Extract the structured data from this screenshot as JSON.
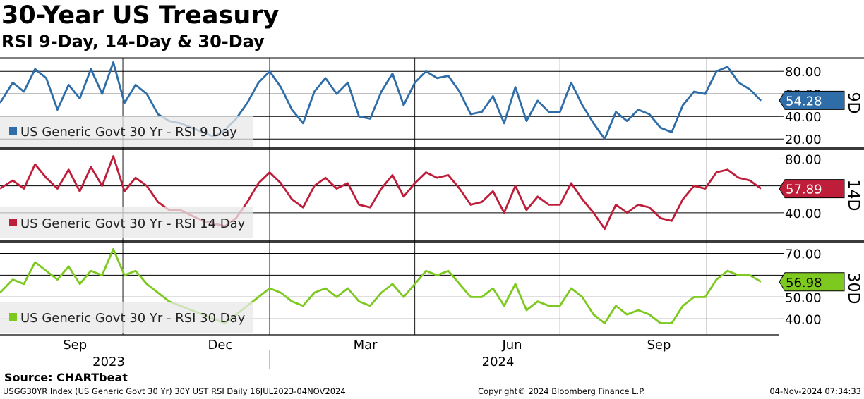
{
  "header": {
    "title": "30-Year US Treasury",
    "subtitle": "RSI 9-Day, 14-Day & 30-Day"
  },
  "footer": {
    "source": "Source: CHARTbeat",
    "left": "USGG30YR Index (US Generic Govt 30 Yr) 30Y UST RSI  Daily 16JUL2023-04NOV2024",
    "middle": "Copyright© 2024 Bloomberg Finance L.P.",
    "right": "04-Nov-2024 07:34:33"
  },
  "chart_data": [
    {
      "type": "line",
      "panel_label": "9D",
      "legend": "US Generic Govt 30 Yr - RSI 9 Day",
      "color": "#2e6da8",
      "last_value": "54.28",
      "last_value_num": 54.28,
      "ylim": [
        12,
        92
      ],
      "yticks": [
        "80.00",
        "60.00",
        "40.00",
        "20.00"
      ],
      "ytick_values": [
        80,
        60,
        40,
        20
      ],
      "grid_values": [
        80,
        60,
        40,
        20
      ],
      "series": [
        {
          "x": [
            "2023-07-16",
            "2023-07-24",
            "2023-07-31",
            "2023-08-07",
            "2023-08-14",
            "2023-08-21",
            "2023-08-28",
            "2023-09-04",
            "2023-09-11",
            "2023-09-18",
            "2023-09-25",
            "2023-10-02",
            "2023-10-09",
            "2023-10-16",
            "2023-10-23",
            "2023-10-30",
            "2023-11-06",
            "2023-11-13",
            "2023-11-20",
            "2023-11-27",
            "2023-12-04",
            "2023-12-11",
            "2023-12-18",
            "2023-12-25",
            "2024-01-01",
            "2024-01-08",
            "2024-01-15",
            "2024-01-22",
            "2024-01-29",
            "2024-02-05",
            "2024-02-12",
            "2024-02-19",
            "2024-02-26",
            "2024-03-04",
            "2024-03-11",
            "2024-03-18",
            "2024-03-25",
            "2024-04-01",
            "2024-04-08",
            "2024-04-15",
            "2024-04-22",
            "2024-04-29",
            "2024-05-06",
            "2024-05-13",
            "2024-05-20",
            "2024-05-27",
            "2024-06-03",
            "2024-06-10",
            "2024-06-17",
            "2024-06-24",
            "2024-07-01",
            "2024-07-08",
            "2024-07-15",
            "2024-07-22",
            "2024-07-29",
            "2024-08-05",
            "2024-08-12",
            "2024-08-19",
            "2024-08-26",
            "2024-09-02",
            "2024-09-09",
            "2024-09-16",
            "2024-09-23",
            "2024-09-30",
            "2024-10-07",
            "2024-10-14",
            "2024-10-21",
            "2024-10-28",
            "2024-11-04"
          ],
          "values": [
            52,
            70,
            62,
            82,
            74,
            46,
            68,
            56,
            82,
            60,
            88,
            52,
            68,
            60,
            42,
            36,
            34,
            30,
            26,
            22,
            28,
            38,
            52,
            70,
            80,
            66,
            46,
            34,
            62,
            74,
            60,
            70,
            40,
            38,
            62,
            78,
            50,
            70,
            80,
            74,
            76,
            62,
            42,
            44,
            58,
            34,
            66,
            36,
            54,
            44,
            44,
            70,
            50,
            34,
            20,
            44,
            36,
            46,
            42,
            30,
            26,
            50,
            62,
            60,
            80,
            84,
            70,
            64,
            54
          ]
        }
      ]
    },
    {
      "type": "line",
      "panel_label": "14D",
      "legend": "US Generic Govt 30 Yr - RSI 14 Day",
      "color": "#be1e3a",
      "last_value": "57.89",
      "last_value_num": 57.89,
      "ylim": [
        20,
        86
      ],
      "yticks": [
        "80.00",
        "40.00"
      ],
      "ytick_values": [
        80,
        40
      ],
      "grid_values": [
        80,
        60,
        40
      ],
      "series": [
        {
          "x": [
            "2023-07-16",
            "2023-07-24",
            "2023-07-31",
            "2023-08-07",
            "2023-08-14",
            "2023-08-21",
            "2023-08-28",
            "2023-09-04",
            "2023-09-11",
            "2023-09-18",
            "2023-09-25",
            "2023-10-02",
            "2023-10-09",
            "2023-10-16",
            "2023-10-23",
            "2023-10-30",
            "2023-11-06",
            "2023-11-13",
            "2023-11-20",
            "2023-11-27",
            "2023-12-04",
            "2023-12-11",
            "2023-12-18",
            "2023-12-25",
            "2024-01-01",
            "2024-01-08",
            "2024-01-15",
            "2024-01-22",
            "2024-01-29",
            "2024-02-05",
            "2024-02-12",
            "2024-02-19",
            "2024-02-26",
            "2024-03-04",
            "2024-03-11",
            "2024-03-18",
            "2024-03-25",
            "2024-04-01",
            "2024-04-08",
            "2024-04-15",
            "2024-04-22",
            "2024-04-29",
            "2024-05-06",
            "2024-05-13",
            "2024-05-20",
            "2024-05-27",
            "2024-06-03",
            "2024-06-10",
            "2024-06-17",
            "2024-06-24",
            "2024-07-01",
            "2024-07-08",
            "2024-07-15",
            "2024-07-22",
            "2024-07-29",
            "2024-08-05",
            "2024-08-12",
            "2024-08-19",
            "2024-08-26",
            "2024-09-02",
            "2024-09-09",
            "2024-09-16",
            "2024-09-23",
            "2024-09-30",
            "2024-10-07",
            "2024-10-14",
            "2024-10-21",
            "2024-10-28",
            "2024-11-04"
          ],
          "values": [
            58,
            64,
            58,
            76,
            66,
            58,
            72,
            56,
            74,
            60,
            82,
            56,
            66,
            60,
            48,
            42,
            42,
            38,
            34,
            32,
            30,
            36,
            48,
            62,
            70,
            62,
            50,
            44,
            60,
            66,
            58,
            62,
            46,
            44,
            58,
            68,
            52,
            62,
            70,
            66,
            68,
            58,
            46,
            48,
            56,
            40,
            60,
            42,
            52,
            46,
            46,
            62,
            50,
            40,
            28,
            46,
            40,
            46,
            44,
            36,
            34,
            50,
            60,
            58,
            70,
            72,
            66,
            64,
            58
          ]
        }
      ]
    },
    {
      "type": "line",
      "panel_label": "30D",
      "legend": "US Generic Govt 30 Yr - RSI 30 Day",
      "color": "#7dc91f",
      "last_value": "56.98",
      "last_value_num": 56.98,
      "ylim": [
        33,
        75
      ],
      "yticks": [
        "70.00",
        "50.00",
        "40.00"
      ],
      "ytick_values": [
        70,
        50,
        40
      ],
      "grid_values": [
        70,
        60,
        50,
        40
      ],
      "series": [
        {
          "x": [
            "2023-07-16",
            "2023-07-24",
            "2023-07-31",
            "2023-08-07",
            "2023-08-14",
            "2023-08-21",
            "2023-08-28",
            "2023-09-04",
            "2023-09-11",
            "2023-09-18",
            "2023-09-25",
            "2023-10-02",
            "2023-10-09",
            "2023-10-16",
            "2023-10-23",
            "2023-10-30",
            "2023-11-06",
            "2023-11-13",
            "2023-11-20",
            "2023-11-27",
            "2023-12-04",
            "2023-12-11",
            "2023-12-18",
            "2023-12-25",
            "2024-01-01",
            "2024-01-08",
            "2024-01-15",
            "2024-01-22",
            "2024-01-29",
            "2024-02-05",
            "2024-02-12",
            "2024-02-19",
            "2024-02-26",
            "2024-03-04",
            "2024-03-11",
            "2024-03-18",
            "2024-03-25",
            "2024-04-01",
            "2024-04-08",
            "2024-04-15",
            "2024-04-22",
            "2024-04-29",
            "2024-05-06",
            "2024-05-13",
            "2024-05-20",
            "2024-05-27",
            "2024-06-03",
            "2024-06-10",
            "2024-06-17",
            "2024-06-24",
            "2024-07-01",
            "2024-07-08",
            "2024-07-15",
            "2024-07-22",
            "2024-07-29",
            "2024-08-05",
            "2024-08-12",
            "2024-08-19",
            "2024-08-26",
            "2024-09-02",
            "2024-09-09",
            "2024-09-16",
            "2024-09-23",
            "2024-09-30",
            "2024-10-07",
            "2024-10-14",
            "2024-10-21",
            "2024-10-28",
            "2024-11-04"
          ],
          "values": [
            52,
            58,
            56,
            66,
            62,
            58,
            64,
            56,
            62,
            60,
            72,
            60,
            62,
            56,
            52,
            48,
            46,
            44,
            42,
            40,
            38,
            42,
            46,
            50,
            54,
            52,
            48,
            46,
            52,
            54,
            50,
            54,
            48,
            46,
            52,
            56,
            50,
            56,
            62,
            60,
            62,
            56,
            50,
            50,
            54,
            46,
            56,
            44,
            48,
            46,
            46,
            54,
            50,
            42,
            38,
            46,
            42,
            44,
            42,
            38,
            38,
            46,
            50,
            50,
            58,
            62,
            60,
            60,
            57
          ]
        }
      ]
    }
  ],
  "x_axis": {
    "month_labels": [
      {
        "label": "Sep",
        "date": "2023-09-01"
      },
      {
        "label": "Dec",
        "date": "2023-12-01"
      },
      {
        "label": "Mar",
        "date": "2024-03-01"
      },
      {
        "label": "Jun",
        "date": "2024-06-01"
      },
      {
        "label": "Sep",
        "date": "2024-09-01"
      }
    ],
    "year_labels": [
      {
        "label": "2023",
        "date": "2023-10-01"
      },
      {
        "label": "2024",
        "date": "2024-06-01"
      }
    ],
    "verticals": [
      "2023-10-01",
      "2024-01-01",
      "2024-04-01",
      "2024-07-01",
      "2024-10-01"
    ],
    "range": [
      "2023-07-16",
      "2024-11-15"
    ]
  }
}
